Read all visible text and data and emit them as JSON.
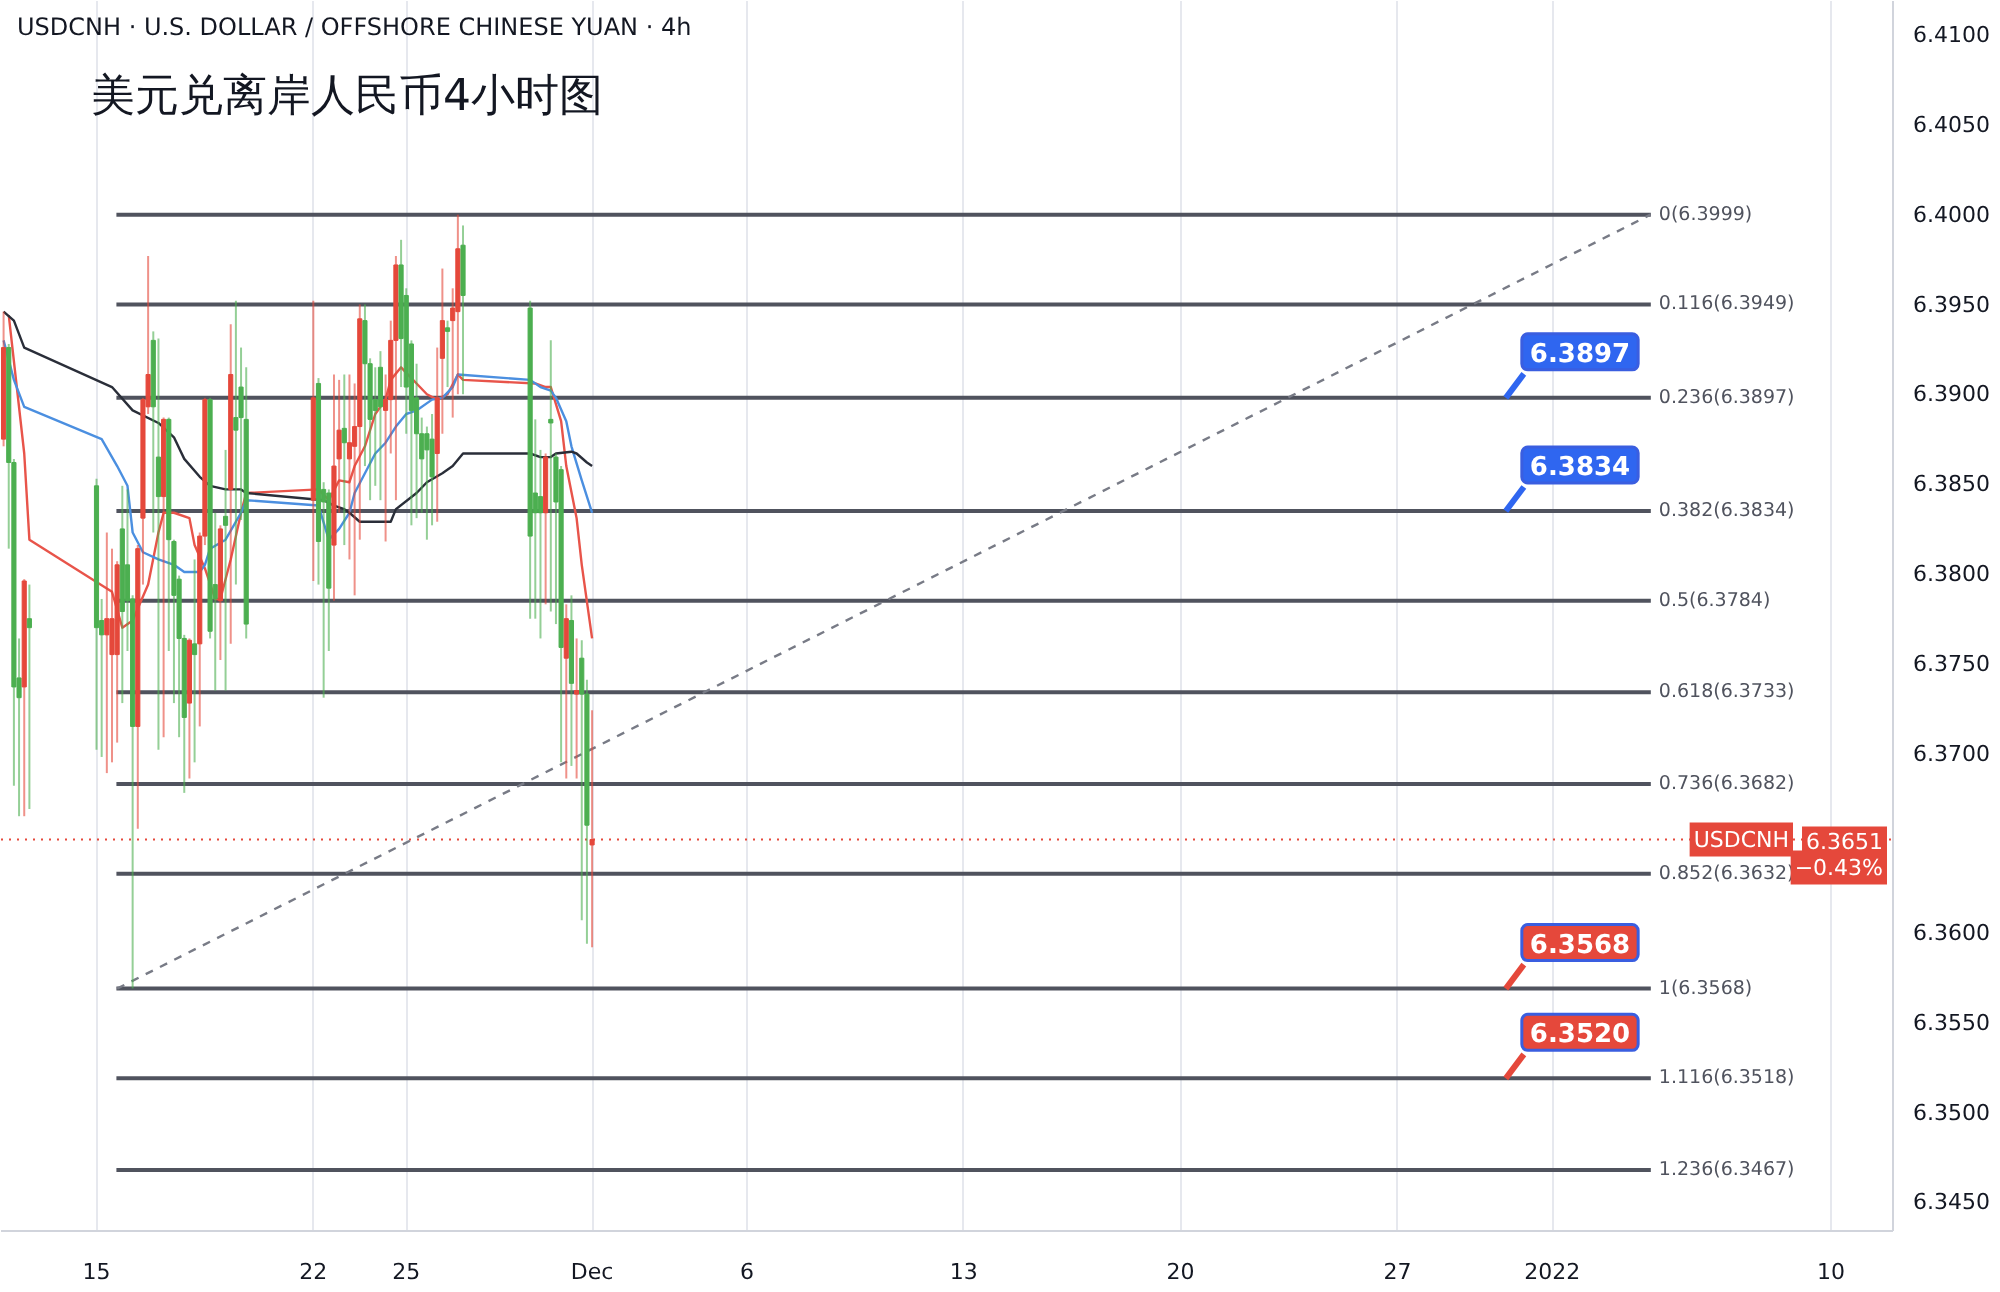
{
  "chart_data": {
    "type": "candlestick",
    "title": "USDCNH · U.S. DOLLAR / OFFSHORE CHINESE YUAN · 4h",
    "subtitle": "美元兑离岸人民币4小时图",
    "x": [
      "2021-11-12T00:00",
      "2021-11-12T04:00",
      "2021-11-12T08:00",
      "2021-11-12T12:00",
      "2021-11-12T16:00",
      "2021-11-12T20:00",
      "2021-11-15T00:00",
      "2021-11-15T04:00",
      "2021-11-15T08:00",
      "2021-11-15T12:00",
      "2021-11-15T16:00",
      "2021-11-15T20:00",
      "2021-11-16T00:00",
      "2021-11-16T04:00",
      "2021-11-16T08:00",
      "2021-11-16T12:00",
      "2021-11-16T16:00",
      "2021-11-16T20:00",
      "2021-11-17T00:00",
      "2021-11-17T04:00",
      "2021-11-17T08:00",
      "2021-11-17T12:00",
      "2021-11-17T16:00",
      "2021-11-17T20:00",
      "2021-11-18T00:00",
      "2021-11-18T04:00",
      "2021-11-18T08:00",
      "2021-11-18T12:00",
      "2021-11-18T16:00",
      "2021-11-18T20:00",
      "2021-11-19T00:00",
      "2021-11-19T04:00",
      "2021-11-19T08:00",
      "2021-11-19T12:00",
      "2021-11-19T16:00",
      "2021-11-19T20:00",
      "2021-11-22T00:00",
      "2021-11-22T04:00",
      "2021-11-22T08:00",
      "2021-11-22T12:00",
      "2021-11-22T16:00",
      "2021-11-22T20:00",
      "2021-11-23T00:00",
      "2021-11-23T04:00",
      "2021-11-23T08:00",
      "2021-11-23T12:00",
      "2021-11-23T16:00",
      "2021-11-23T20:00",
      "2021-11-24T00:00",
      "2021-11-24T04:00",
      "2021-11-24T08:00",
      "2021-11-24T12:00",
      "2021-11-24T16:00",
      "2021-11-24T20:00",
      "2021-11-25T00:00",
      "2021-11-25T04:00",
      "2021-11-25T08:00",
      "2021-11-25T12:00",
      "2021-11-25T16:00",
      "2021-11-25T20:00",
      "2021-11-26T00:00",
      "2021-11-26T04:00",
      "2021-11-26T08:00",
      "2021-11-26T12:00",
      "2021-11-26T16:00",
      "2021-11-26T20:00",
      "2021-11-29T00:00",
      "2021-11-29T04:00",
      "2021-11-29T08:00",
      "2021-11-29T12:00",
      "2021-11-29T16:00",
      "2021-11-29T20:00",
      "2021-11-30T00:00",
      "2021-11-30T04:00",
      "2021-11-30T08:00",
      "2021-11-30T12:00",
      "2021-11-30T16:00",
      "2021-11-30T20:00",
      "2021-12-01T00:00"
    ],
    "ohlc": [
      [
        6.3874,
        6.3945,
        6.387,
        6.3925
      ],
      [
        6.3925,
        6.3927,
        6.3813,
        6.3861
      ],
      [
        6.3861,
        6.3863,
        6.3681,
        6.3736
      ],
      [
        6.3741,
        6.3763,
        6.3664,
        6.373
      ],
      [
        6.3736,
        6.3796,
        6.3664,
        6.3795
      ],
      [
        6.3774,
        6.3793,
        6.3668,
        6.3769
      ],
      [
        6.3848,
        6.3852,
        6.3701,
        6.3769
      ],
      [
        6.3773,
        6.3785,
        6.3697,
        6.3765
      ],
      [
        6.3765,
        6.3822,
        6.3688,
        6.3774
      ],
      [
        6.3754,
        6.3813,
        6.3694,
        6.3774
      ],
      [
        6.3754,
        6.3806,
        6.3705,
        6.3804
      ],
      [
        6.3824,
        6.3848,
        6.3727,
        6.3778
      ],
      [
        6.3804,
        6.3846,
        6.3756,
        6.3784
      ],
      [
        6.3785,
        6.3787,
        6.3568,
        6.3714
      ],
      [
        6.3714,
        6.3815,
        6.3657,
        6.3813
      ],
      [
        6.383,
        6.3897,
        6.3793,
        6.3896
      ],
      [
        6.3892,
        6.3976,
        6.3888,
        6.391
      ],
      [
        6.3929,
        6.3934,
        6.3822,
        6.3892
      ],
      [
        6.3864,
        6.393,
        6.3701,
        6.3842
      ],
      [
        6.3842,
        6.3886,
        6.3708,
        6.3885
      ],
      [
        6.3885,
        6.3886,
        6.3756,
        6.3818
      ],
      [
        6.3817,
        6.3818,
        6.3727,
        6.3787
      ],
      [
        6.3796,
        6.3798,
        6.3708,
        6.3763
      ],
      [
        6.3763,
        6.3765,
        6.3677,
        6.3719
      ],
      [
        6.3727,
        6.3763,
        6.3685,
        6.3762
      ],
      [
        6.376,
        6.3807,
        6.3694,
        6.3754
      ],
      [
        6.376,
        6.3822,
        6.3714,
        6.382
      ],
      [
        6.382,
        6.3897,
        6.3815,
        6.3896
      ],
      [
        6.3896,
        6.3897,
        6.3763,
        6.3767
      ],
      [
        6.3793,
        6.3833,
        6.3734,
        6.3785
      ],
      [
        6.3784,
        6.3826,
        6.3751,
        6.3824
      ],
      [
        6.3831,
        6.3868,
        6.3734,
        6.3826
      ],
      [
        6.3846,
        6.3938,
        6.376,
        6.391
      ],
      [
        6.3886,
        6.3951,
        6.3793,
        6.3879
      ],
      [
        6.3903,
        6.3925,
        6.3829,
        6.3886
      ],
      [
        6.3885,
        6.3914,
        6.3763,
        6.3771
      ],
      [
        6.384,
        6.3951,
        6.3795,
        6.3897
      ],
      [
        6.3905,
        6.3908,
        6.3793,
        6.3817
      ],
      [
        6.3846,
        6.385,
        6.373,
        6.3839
      ],
      [
        6.3844,
        6.3846,
        6.3756,
        6.3791
      ],
      [
        6.3815,
        6.391,
        6.3784,
        6.3859
      ],
      [
        6.3863,
        6.3907,
        6.3833,
        6.3879
      ],
      [
        6.388,
        6.391,
        6.3815,
        6.3872
      ],
      [
        6.3863,
        6.391,
        6.3807,
        6.3872
      ],
      [
        6.387,
        6.3905,
        6.3787,
        6.3881
      ],
      [
        6.3881,
        6.3949,
        6.3818,
        6.3941
      ],
      [
        6.394,
        6.3949,
        6.3859,
        6.3916
      ],
      [
        6.3916,
        6.3919,
        6.384,
        6.3885
      ],
      [
        6.3896,
        6.3914,
        6.3848,
        6.389
      ],
      [
        6.3914,
        6.3923,
        6.384,
        6.3892
      ],
      [
        6.389,
        6.391,
        6.3817,
        6.3896
      ],
      [
        6.3896,
        6.394,
        6.3866,
        6.3929
      ],
      [
        6.3929,
        6.3976,
        6.384,
        6.3971
      ],
      [
        6.3971,
        6.3985,
        6.3903,
        6.393
      ],
      [
        6.3954,
        6.3958,
        6.3877,
        6.3903
      ],
      [
        6.3927,
        6.3929,
        6.3826,
        6.389
      ],
      [
        6.3897,
        6.3916,
        6.383,
        6.3877
      ],
      [
        6.3877,
        6.3886,
        6.3833,
        6.3863
      ],
      [
        6.3877,
        6.3881,
        6.3818,
        6.3868
      ],
      [
        6.3874,
        6.3888,
        6.3826,
        6.3853
      ],
      [
        6.3866,
        6.3925,
        6.3828,
        6.3897
      ],
      [
        6.3919,
        6.3969,
        6.3877,
        6.394
      ],
      [
        6.3936,
        6.394,
        6.3903,
        6.3934
      ],
      [
        6.394,
        6.3958,
        6.3886,
        6.3947
      ],
      [
        6.3945,
        6.3999,
        6.3899,
        6.398
      ],
      [
        6.3982,
        6.3993,
        6.3899,
        6.3954
      ],
      [
        6.3947,
        6.3951,
        6.3774,
        6.382
      ],
      [
        6.3844,
        6.3885,
        6.3774,
        6.3833
      ],
      [
        6.3842,
        6.3868,
        6.3763,
        6.3833
      ],
      [
        6.3833,
        6.3866,
        6.3782,
        6.3864
      ],
      [
        6.3885,
        6.3929,
        6.3778,
        6.3883
      ],
      [
        6.3864,
        6.3866,
        6.3771,
        6.3839
      ],
      [
        6.3857,
        6.3859,
        6.3694,
        6.3758
      ],
      [
        6.3752,
        6.3782,
        6.3685,
        6.3774
      ],
      [
        6.3773,
        6.3787,
        6.3692,
        6.3738
      ],
      [
        6.3732,
        6.3763,
        6.3685,
        6.3734
      ],
      [
        6.3752,
        6.3762,
        6.3606,
        6.3732
      ],
      [
        6.3732,
        6.374,
        6.3593,
        6.3659
      ],
      [
        6.3648,
        6.3723,
        6.3591,
        6.3651
      ]
    ],
    "colors": [
      "#e5483b",
      "#4caf50",
      "#4caf50",
      "#4caf50",
      "#e5483b",
      "#4caf50",
      "#4caf50",
      "#4caf50",
      "#e5483b",
      "#e5483b",
      "#e5483b",
      "#4caf50",
      "#4caf50",
      "#4caf50",
      "#e5483b",
      "#e5483b",
      "#e5483b",
      "#4caf50",
      "#4caf50",
      "#e5483b",
      "#4caf50",
      "#4caf50",
      "#4caf50",
      "#4caf50",
      "#e5483b",
      "#4caf50",
      "#e5483b",
      "#e5483b",
      "#4caf50",
      "#4caf50",
      "#e5483b",
      "#4caf50",
      "#e5483b",
      "#4caf50",
      "#4caf50",
      "#4caf50",
      "#e5483b",
      "#4caf50",
      "#4caf50",
      "#4caf50",
      "#e5483b",
      "#e5483b",
      "#4caf50",
      "#e5483b",
      "#e5483b",
      "#e5483b",
      "#4caf50",
      "#4caf50",
      "#4caf50",
      "#4caf50",
      "#e5483b",
      "#e5483b",
      "#e5483b",
      "#4caf50",
      "#4caf50",
      "#4caf50",
      "#4caf50",
      "#4caf50",
      "#4caf50",
      "#4caf50",
      "#e5483b",
      "#e5483b",
      "#4caf50",
      "#e5483b",
      "#e5483b",
      "#4caf50",
      "#4caf50",
      "#4caf50",
      "#4caf50",
      "#e5483b",
      "#4caf50",
      "#4caf50",
      "#4caf50",
      "#e5483b",
      "#4caf50",
      "#e5483b",
      "#4caf50",
      "#4caf50",
      "#e5483b"
    ],
    "series": [
      {
        "type": "line",
        "color": "#e8544a",
        "x": [
          "2021-11-12T04:00",
          "2021-11-12T16:00",
          "2021-11-12T20:00",
          "2021-11-15T12:00",
          "2021-11-15T20:00",
          "2021-11-16T04:00",
          "2021-11-16T16:00",
          "2021-11-17T00:00",
          "2021-11-17T04:00",
          "2021-11-17T12:00",
          "2021-11-18T00:00",
          "2021-11-18T04:00",
          "2021-11-18T12:00",
          "2021-11-18T20:00",
          "2021-11-19T00:00",
          "2021-11-19T08:00",
          "2021-11-19T16:00",
          "2021-11-19T20:00",
          "2021-11-22T04:00",
          "2021-11-22T12:00",
          "2021-11-22T20:00",
          "2021-11-23T04:00",
          "2021-11-23T08:00",
          "2021-11-23T16:00",
          "2021-11-24T00:00",
          "2021-11-24T08:00",
          "2021-11-24T12:00",
          "2021-11-24T20:00",
          "2021-11-25T04:00",
          "2021-11-25T08:00",
          "2021-11-25T16:00",
          "2021-11-26T00:00",
          "2021-11-26T08:00",
          "2021-11-26T16:00",
          "2021-11-26T20:00",
          "2021-11-29T04:00",
          "2021-11-29T12:00",
          "2021-11-29T16:00",
          "2021-11-30T00:00",
          "2021-11-30T04:00",
          "2021-11-30T12:00",
          "2021-11-30T16:00",
          "2021-12-01T00:00"
        ],
        "values": [
          6.3943,
          6.3866,
          6.3818,
          6.3789,
          6.3769,
          6.3773,
          6.3793,
          6.3822,
          6.3833,
          6.3833,
          6.383,
          6.3815,
          6.3802,
          6.3785,
          6.3785,
          6.3807,
          6.3833,
          6.3844,
          6.3846,
          6.384,
          6.3851,
          6.385,
          6.3859,
          6.387,
          6.3888,
          6.3896,
          6.3907,
          6.3914,
          6.3908,
          6.3905,
          6.3899,
          6.3896,
          6.3899,
          6.391,
          6.3907,
          6.3905,
          6.3903,
          6.3903,
          6.3884,
          6.3859,
          6.383,
          6.3804,
          6.3763
        ]
      },
      {
        "type": "line",
        "color": "#4b8fe0",
        "x": [
          "2021-11-12T00:00",
          "2021-11-12T08:00",
          "2021-11-12T16:00",
          "2021-11-15T04:00",
          "2021-11-15T16:00",
          "2021-11-16T00:00",
          "2021-11-16T04:00",
          "2021-11-16T12:00",
          "2021-11-17T00:00",
          "2021-11-17T12:00",
          "2021-11-17T20:00",
          "2021-11-18T08:00",
          "2021-11-18T12:00",
          "2021-11-18T16:00",
          "2021-11-19T04:00",
          "2021-11-19T16:00",
          "2021-11-19T20:00",
          "2021-11-22T04:00",
          "2021-11-22T12:00",
          "2021-11-22T20:00",
          "2021-11-23T04:00",
          "2021-11-23T08:00",
          "2021-11-23T16:00",
          "2021-11-24T00:00",
          "2021-11-24T08:00",
          "2021-11-24T16:00",
          "2021-11-25T00:00",
          "2021-11-25T08:00",
          "2021-11-25T20:00",
          "2021-11-26T04:00",
          "2021-11-26T12:00",
          "2021-11-26T16:00",
          "2021-11-29T00:00",
          "2021-11-29T08:00",
          "2021-11-29T16:00",
          "2021-11-29T20:00",
          "2021-11-30T04:00",
          "2021-11-30T08:00",
          "2021-11-30T16:00",
          "2021-12-01T00:00"
        ],
        "values": [
          6.3929,
          6.3907,
          6.3892,
          6.3874,
          6.3859,
          6.3848,
          6.3822,
          6.3811,
          6.3807,
          6.3804,
          6.38,
          6.38,
          6.3804,
          6.3813,
          6.3818,
          6.3833,
          6.384,
          6.3837,
          6.3818,
          6.3824,
          6.3833,
          6.3844,
          6.3855,
          6.3866,
          6.3872,
          6.3881,
          6.3888,
          6.389,
          6.3896,
          6.3897,
          6.3903,
          6.391,
          6.3907,
          6.3903,
          6.3901,
          6.3897,
          6.3884,
          6.387,
          6.3851,
          6.3833
        ]
      },
      {
        "type": "line",
        "color": "#2a2e39",
        "x": [
          "2021-11-12T00:00",
          "2021-11-12T08:00",
          "2021-11-12T16:00",
          "2021-11-15T12:00",
          "2021-11-16T04:00",
          "2021-11-17T00:00",
          "2021-11-17T12:00",
          "2021-11-17T20:00",
          "2021-11-18T08:00",
          "2021-11-18T16:00",
          "2021-11-19T04:00",
          "2021-11-19T16:00",
          "2021-11-19T20:00",
          "2021-11-22T08:00",
          "2021-11-22T16:00",
          "2021-11-23T00:00",
          "2021-11-23T04:00",
          "2021-11-23T12:00",
          "2021-11-24T00:00",
          "2021-11-24T12:00",
          "2021-11-24T16:00",
          "2021-11-25T08:00",
          "2021-11-25T16:00",
          "2021-11-26T04:00",
          "2021-11-26T12:00",
          "2021-11-26T20:00",
          "2021-11-29T00:00",
          "2021-11-29T08:00",
          "2021-11-29T16:00",
          "2021-11-29T20:00",
          "2021-11-30T08:00",
          "2021-11-30T12:00",
          "2021-11-30T20:00",
          "2021-12-01T00:00"
        ],
        "values": [
          6.3945,
          6.394,
          6.3925,
          6.3903,
          6.389,
          6.3883,
          6.3875,
          6.3863,
          6.3853,
          6.3848,
          6.3846,
          6.3846,
          6.3844,
          6.384,
          6.3837,
          6.3835,
          6.3833,
          6.3828,
          6.3828,
          6.3828,
          6.3835,
          6.3844,
          6.385,
          6.3855,
          6.3859,
          6.3866,
          6.3866,
          6.3864,
          6.3864,
          6.3866,
          6.3867,
          6.3866,
          6.3861,
          6.3859
        ]
      },
      {
        "type": "line",
        "color": "#787b86",
        "line_style": "dashed",
        "x": [
          "2021-11-15T16:00",
          "2022-01-04T04:00"
        ],
        "values": [
          6.3568,
          6.3999
        ]
      }
    ],
    "xlim": [
      "2021-11-11T22:00",
      "2022-01-12T00:00"
    ],
    "xticks": [
      {
        "value": "2021-11-15",
        "label": "15"
      },
      {
        "value": "2021-11-22",
        "label": "22"
      },
      {
        "value": "2021-11-25",
        "label": "25"
      },
      {
        "value": "2021-12-01",
        "label": "Dec"
      },
      {
        "value": "2021-12-06",
        "label": "6"
      },
      {
        "value": "2021-12-13",
        "label": "13"
      },
      {
        "value": "2021-12-20",
        "label": "20"
      },
      {
        "value": "2021-12-27",
        "label": "27"
      },
      {
        "value": "2022-01-01",
        "label": "2022"
      },
      {
        "value": "2022-01-10",
        "label": "10"
      }
    ],
    "ylim": [
      6.3433,
      6.4118
    ],
    "yticks": [
      {
        "value": 6.345,
        "label": "6.3450"
      },
      {
        "value": 6.35,
        "label": "6.3500"
      },
      {
        "value": 6.355,
        "label": "6.3550"
      },
      {
        "value": 6.36,
        "label": "6.3600"
      },
      {
        "value": 6.365,
        "label": null
      },
      {
        "value": 6.37,
        "label": "6.3700"
      },
      {
        "value": 6.375,
        "label": "6.3750"
      },
      {
        "value": 6.38,
        "label": "6.3800"
      },
      {
        "value": 6.385,
        "label": "6.3850"
      },
      {
        "value": 6.39,
        "label": "6.3900"
      },
      {
        "value": 6.395,
        "label": "6.3950"
      },
      {
        "value": 6.4,
        "label": "6.4000"
      },
      {
        "value": 6.405,
        "label": "6.4050"
      },
      {
        "value": 6.41,
        "label": "6.4100"
      }
    ],
    "ref_lines": [
      {
        "axis": "y",
        "value": 6.3999,
        "label": "0(6.3999)"
      },
      {
        "axis": "y",
        "value": 6.3949,
        "label": "0.116(6.3949)"
      },
      {
        "axis": "y",
        "value": 6.3897,
        "label": "0.236(6.3897)"
      },
      {
        "axis": "y",
        "value": 6.3834,
        "label": "0.382(6.3834)"
      },
      {
        "axis": "y",
        "value": 6.3784,
        "label": "0.5(6.3784)"
      },
      {
        "axis": "y",
        "value": 6.3733,
        "label": "0.618(6.3733)"
      },
      {
        "axis": "y",
        "value": 6.3682,
        "label": "0.736(6.3682)"
      },
      {
        "axis": "y",
        "value": 6.3632,
        "label": "0.852(6.3632)"
      },
      {
        "axis": "y",
        "value": 6.3568,
        "label": "1(6.3568)"
      },
      {
        "axis": "y",
        "value": 6.3518,
        "label": "1.116(6.3518)"
      },
      {
        "axis": "y",
        "value": 6.3467,
        "label": "1.236(6.3467)"
      },
      {
        "axis": "y",
        "value": 6.3651,
        "label": "USDCNH",
        "color": "#e5483b",
        "line_style": "dotted"
      }
    ],
    "annotations": [
      {
        "text": "6.3897",
        "x": "2021-12-30T12:00",
        "y": 6.3897
      },
      {
        "text": "6.3834",
        "x": "2021-12-30T12:00",
        "y": 6.3834
      },
      {
        "text": "6.3568",
        "x": "2021-12-30T12:00",
        "y": 6.3568
      },
      {
        "text": "6.3520",
        "x": "2021-12-30T12:00",
        "y": 6.3518
      },
      "6.3651",
      "−0.43%"
    ],
    "grid": "x"
  }
}
